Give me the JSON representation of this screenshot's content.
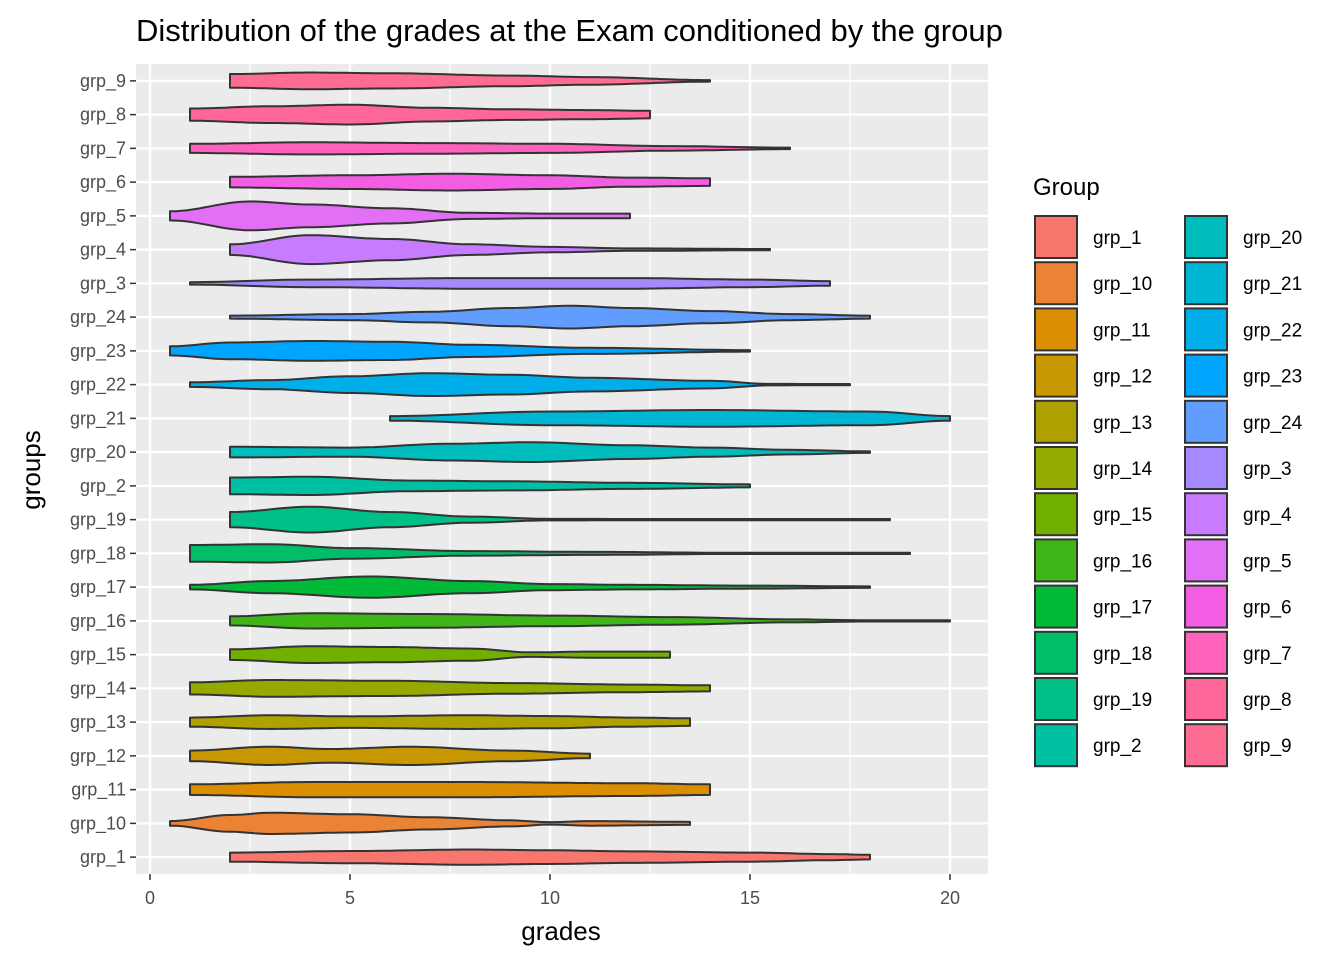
{
  "chart_data": {
    "type": "violin",
    "title": "Distribution of the grades at the Exam conditioned by the group",
    "xlabel": "grades",
    "ylabel": "groups",
    "xlim": [
      -0.35,
      20.95
    ],
    "x_ticks": [
      0,
      5,
      10,
      15,
      20
    ],
    "orientation": "horizontal",
    "grid": true,
    "legend_title": "Group",
    "legend_position": "right",
    "categories": [
      "grp_1",
      "grp_10",
      "grp_11",
      "grp_12",
      "grp_13",
      "grp_14",
      "grp_15",
      "grp_16",
      "grp_17",
      "grp_18",
      "grp_19",
      "grp_2",
      "grp_20",
      "grp_21",
      "grp_22",
      "grp_23",
      "grp_24",
      "grp_3",
      "grp_4",
      "grp_5",
      "grp_6",
      "grp_7",
      "grp_8",
      "grp_9"
    ],
    "colors": [
      "#F8766D",
      "#EB8335",
      "#DB8E00",
      "#C79800",
      "#AFA100",
      "#94AA00",
      "#72B000",
      "#3FB618",
      "#00BA38",
      "#00BE67",
      "#00C087",
      "#00C0A3",
      "#00BDBD",
      "#00B6D5",
      "#00AEEA",
      "#00A5FF",
      "#619CFF",
      "#A58AFF",
      "#C77CFF",
      "#E36FF6",
      "#F35DE3",
      "#FF62BC",
      "#FF6798",
      "#FF6C91"
    ],
    "series": [
      {
        "name": "grp_1",
        "min": 2,
        "max": 18,
        "density": [
          [
            2,
            0.3
          ],
          [
            5,
            0.4
          ],
          [
            8,
            0.5
          ],
          [
            10,
            0.45
          ],
          [
            12,
            0.38
          ],
          [
            15,
            0.3
          ],
          [
            17,
            0.2
          ],
          [
            18,
            0.15
          ]
        ]
      },
      {
        "name": "grp_10",
        "min": 0.5,
        "max": 13.5,
        "density": [
          [
            0.5,
            0.15
          ],
          [
            2,
            0.55
          ],
          [
            3,
            0.7
          ],
          [
            5,
            0.6
          ],
          [
            7,
            0.4
          ],
          [
            9,
            0.2
          ],
          [
            10,
            0.08
          ],
          [
            11,
            0.15
          ],
          [
            13.5,
            0.1
          ]
        ]
      },
      {
        "name": "grp_11",
        "min": 1,
        "max": 14,
        "density": [
          [
            1,
            0.35
          ],
          [
            4,
            0.5
          ],
          [
            8,
            0.5
          ],
          [
            12,
            0.42
          ],
          [
            14,
            0.35
          ]
        ]
      },
      {
        "name": "grp_12",
        "min": 1,
        "max": 11,
        "density": [
          [
            1,
            0.35
          ],
          [
            3,
            0.6
          ],
          [
            4.5,
            0.45
          ],
          [
            6.5,
            0.6
          ],
          [
            9,
            0.35
          ],
          [
            11,
            0.15
          ]
        ]
      },
      {
        "name": "grp_13",
        "min": 1,
        "max": 13.5,
        "density": [
          [
            1,
            0.3
          ],
          [
            3,
            0.45
          ],
          [
            5,
            0.38
          ],
          [
            8,
            0.45
          ],
          [
            10,
            0.4
          ],
          [
            12,
            0.3
          ],
          [
            13.5,
            0.25
          ]
        ]
      },
      {
        "name": "grp_14",
        "min": 1,
        "max": 14,
        "density": [
          [
            1,
            0.4
          ],
          [
            3,
            0.55
          ],
          [
            6,
            0.5
          ],
          [
            9,
            0.35
          ],
          [
            12,
            0.25
          ],
          [
            14,
            0.2
          ]
        ]
      },
      {
        "name": "grp_15",
        "min": 2,
        "max": 13,
        "density": [
          [
            2,
            0.35
          ],
          [
            4,
            0.55
          ],
          [
            6,
            0.5
          ],
          [
            8,
            0.4
          ],
          [
            9.5,
            0.15
          ],
          [
            11,
            0.2
          ],
          [
            13,
            0.2
          ]
        ]
      },
      {
        "name": "grp_16",
        "min": 2,
        "max": 20,
        "density": [
          [
            2,
            0.3
          ],
          [
            4,
            0.5
          ],
          [
            7,
            0.45
          ],
          [
            10,
            0.35
          ],
          [
            13,
            0.25
          ],
          [
            16,
            0.1
          ],
          [
            18,
            0.04
          ],
          [
            20,
            0.02
          ]
        ]
      },
      {
        "name": "grp_17",
        "min": 1,
        "max": 18,
        "density": [
          [
            1,
            0.15
          ],
          [
            3,
            0.4
          ],
          [
            5.5,
            0.7
          ],
          [
            8,
            0.4
          ],
          [
            10,
            0.2
          ],
          [
            12,
            0.15
          ],
          [
            15,
            0.1
          ],
          [
            18,
            0.05
          ]
        ]
      },
      {
        "name": "grp_18",
        "min": 1,
        "max": 19,
        "density": [
          [
            1,
            0.55
          ],
          [
            3,
            0.6
          ],
          [
            5,
            0.35
          ],
          [
            8,
            0.15
          ],
          [
            11,
            0.1
          ],
          [
            15,
            0.03
          ],
          [
            19,
            0.02
          ]
        ]
      },
      {
        "name": "grp_19",
        "min": 2,
        "max": 18.5,
        "density": [
          [
            2,
            0.5
          ],
          [
            4,
            0.85
          ],
          [
            6,
            0.5
          ],
          [
            8,
            0.2
          ],
          [
            10,
            0.05
          ],
          [
            14,
            0.03
          ],
          [
            18.5,
            0.02
          ]
        ]
      },
      {
        "name": "grp_2",
        "min": 2,
        "max": 15,
        "density": [
          [
            2,
            0.55
          ],
          [
            4,
            0.6
          ],
          [
            6.5,
            0.35
          ],
          [
            9,
            0.3
          ],
          [
            12,
            0.2
          ],
          [
            15,
            0.1
          ]
        ]
      },
      {
        "name": "grp_20",
        "min": 2,
        "max": 18,
        "density": [
          [
            2,
            0.35
          ],
          [
            5,
            0.3
          ],
          [
            7.5,
            0.55
          ],
          [
            9.5,
            0.65
          ],
          [
            12,
            0.45
          ],
          [
            14,
            0.3
          ],
          [
            16,
            0.15
          ],
          [
            18,
            0.05
          ]
        ]
      },
      {
        "name": "grp_21",
        "min": 6,
        "max": 20,
        "density": [
          [
            6,
            0.15
          ],
          [
            10,
            0.45
          ],
          [
            14,
            0.55
          ],
          [
            18,
            0.45
          ],
          [
            20,
            0.15
          ]
        ]
      },
      {
        "name": "grp_22",
        "min": 1,
        "max": 17.5,
        "density": [
          [
            1,
            0.15
          ],
          [
            3,
            0.3
          ],
          [
            5,
            0.55
          ],
          [
            7,
            0.75
          ],
          [
            9,
            0.65
          ],
          [
            11,
            0.45
          ],
          [
            14,
            0.25
          ],
          [
            15.5,
            0.05
          ],
          [
            17.5,
            0.03
          ]
        ]
      },
      {
        "name": "grp_23",
        "min": 0.5,
        "max": 15,
        "density": [
          [
            0.5,
            0.3
          ],
          [
            2,
            0.55
          ],
          [
            4,
            0.65
          ],
          [
            6,
            0.6
          ],
          [
            8,
            0.4
          ],
          [
            11,
            0.2
          ],
          [
            15,
            0.05
          ]
        ]
      },
      {
        "name": "grp_24",
        "min": 2,
        "max": 18,
        "density": [
          [
            2,
            0.1
          ],
          [
            5,
            0.2
          ],
          [
            7,
            0.35
          ],
          [
            9,
            0.6
          ],
          [
            10.5,
            0.75
          ],
          [
            12,
            0.6
          ],
          [
            14,
            0.4
          ],
          [
            16,
            0.2
          ],
          [
            18,
            0.1
          ]
        ]
      },
      {
        "name": "grp_3",
        "min": 1,
        "max": 17,
        "density": [
          [
            1,
            0.08
          ],
          [
            4,
            0.25
          ],
          [
            8,
            0.35
          ],
          [
            12,
            0.35
          ],
          [
            15,
            0.25
          ],
          [
            17,
            0.15
          ]
        ]
      },
      {
        "name": "grp_4",
        "min": 2,
        "max": 15.5,
        "density": [
          [
            2,
            0.35
          ],
          [
            4,
            0.95
          ],
          [
            6,
            0.7
          ],
          [
            8,
            0.35
          ],
          [
            10,
            0.18
          ],
          [
            12,
            0.08
          ],
          [
            15.5,
            0.04
          ]
        ]
      },
      {
        "name": "grp_5",
        "min": 0.5,
        "max": 12,
        "density": [
          [
            0.5,
            0.3
          ],
          [
            2.5,
            0.95
          ],
          [
            4,
            0.75
          ],
          [
            6,
            0.5
          ],
          [
            8,
            0.2
          ],
          [
            10,
            0.15
          ],
          [
            12,
            0.15
          ]
        ]
      },
      {
        "name": "grp_6",
        "min": 2,
        "max": 14,
        "density": [
          [
            2,
            0.35
          ],
          [
            5,
            0.45
          ],
          [
            7.5,
            0.55
          ],
          [
            10,
            0.45
          ],
          [
            12,
            0.3
          ],
          [
            14,
            0.25
          ]
        ]
      },
      {
        "name": "grp_7",
        "min": 1,
        "max": 16,
        "density": [
          [
            1,
            0.3
          ],
          [
            4,
            0.4
          ],
          [
            7,
            0.35
          ],
          [
            10,
            0.3
          ],
          [
            13,
            0.15
          ],
          [
            16,
            0.05
          ]
        ]
      },
      {
        "name": "grp_8",
        "min": 1,
        "max": 12.5,
        "density": [
          [
            1,
            0.4
          ],
          [
            3,
            0.55
          ],
          [
            5,
            0.65
          ],
          [
            7,
            0.45
          ],
          [
            9,
            0.35
          ],
          [
            11,
            0.3
          ],
          [
            12.5,
            0.25
          ]
        ]
      },
      {
        "name": "grp_9",
        "min": 2,
        "max": 14,
        "density": [
          [
            2,
            0.45
          ],
          [
            4,
            0.55
          ],
          [
            6,
            0.5
          ],
          [
            9,
            0.35
          ],
          [
            11,
            0.25
          ],
          [
            14,
            0.05
          ]
        ]
      }
    ]
  }
}
